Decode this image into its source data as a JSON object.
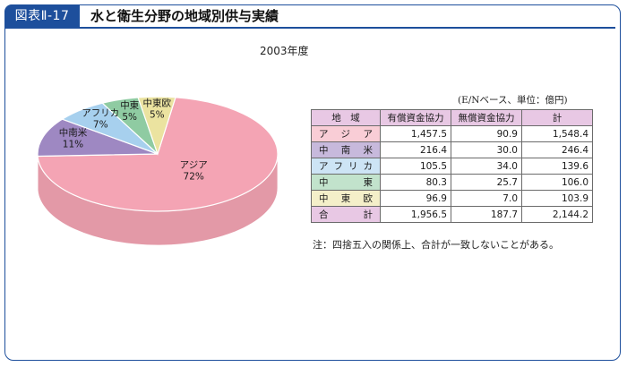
{
  "header": {
    "figure_label": "図表Ⅱ-17",
    "title": "水と衛生分野の地域別供与実績"
  },
  "chart_data": [
    {
      "type": "pie",
      "title": "2003年度",
      "slices": [
        {
          "label": "アジア",
          "value": 72,
          "value_label": "72%",
          "color": "#f4a4b4"
        },
        {
          "label": "中南米",
          "value": 11,
          "value_label": "11%",
          "color": "#9e88c2"
        },
        {
          "label": "アフリカ",
          "value": 7,
          "value_label": "7%",
          "color": "#a7d0ee"
        },
        {
          "label": "中東",
          "value": 5,
          "value_label": "5%",
          "color": "#8fcba2"
        },
        {
          "label": "中東欧",
          "value": 5,
          "value_label": "5%",
          "color": "#ebe3a0"
        }
      ]
    },
    {
      "type": "table",
      "unit_note": "(E/Nベース、単位：億円)",
      "columns": [
        "地　域",
        "有償資金協力",
        "無償資金協力",
        "計"
      ],
      "rows": [
        {
          "region": "アジア",
          "loan": "1,457.5",
          "grant": "90.9",
          "total": "1,548.4",
          "color": "#f9cdd6"
        },
        {
          "region": "中南米",
          "loan": "216.4",
          "grant": "30.0",
          "total": "246.4",
          "color": "#c7b9dc"
        },
        {
          "region": "アフリカ",
          "loan": "105.5",
          "grant": "34.0",
          "total": "139.6",
          "color": "#cde4f5"
        },
        {
          "region": "中東",
          "loan": "80.3",
          "grant": "25.7",
          "total": "106.0",
          "color": "#c2e3cc"
        },
        {
          "region": "中東欧",
          "loan": "96.9",
          "grant": "7.0",
          "total": "103.9",
          "color": "#f4efc9"
        },
        {
          "region": "合計",
          "loan": "1,956.5",
          "grant": "187.7",
          "total": "2,144.2",
          "color": "#e8c8e4"
        }
      ],
      "note": "注：四捨五入の関係上、合計が一致しないことがある。"
    }
  ]
}
